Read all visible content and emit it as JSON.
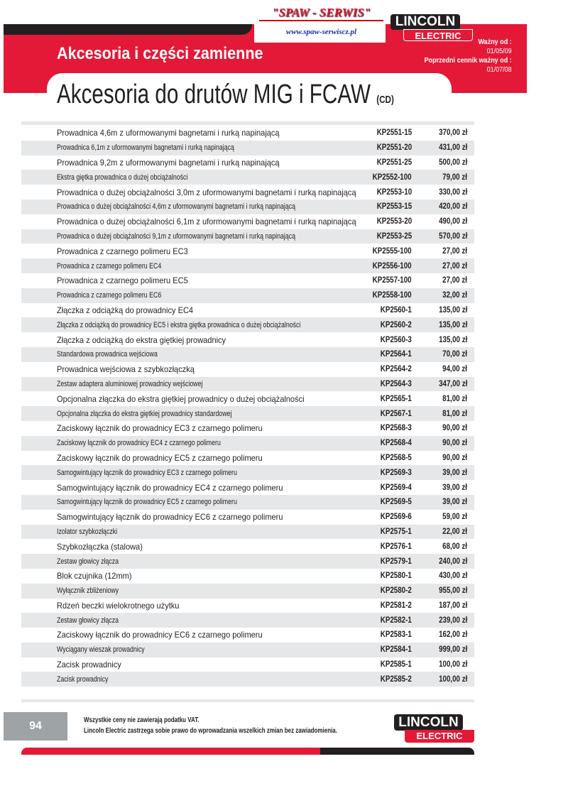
{
  "header": {
    "dealer_logo": "\"SPAW - SERWIS\"",
    "dealer_url": "www.spaw-serwiscz.pl",
    "brand_logo": {
      "line1": "LINCOLN",
      "line2": "ELECTRIC"
    },
    "section_title": "Akcesoria i części zamienne",
    "valid_from_label": "Ważny od :",
    "valid_from": "01/05/09",
    "previous_label": "Poprzedni cennik ważny od :",
    "previous_date": "01/07/08",
    "page_title": "Akcesoria do drutów MIG i FCAW",
    "page_title_suffix": "(CD)",
    "brand_color": "#e31937"
  },
  "items": [
    {
      "desc": "Prowadnica 4,6m z uformowanymi bagnetami i rurką napinającą",
      "code": "KP2551-15",
      "price": "370,00 zł"
    },
    {
      "desc": "Prowadnica 6,1m z uformowanymi bagnetami i rurką napinającą",
      "code": "KP2551-20",
      "price": "431,00 zł"
    },
    {
      "desc": "Prowadnica 9,2m z uformowanymi bagnetami i rurką napinającą",
      "code": "KP2551-25",
      "price": "500,00 zł"
    },
    {
      "desc": "Ekstra giętka prowadnica o dużej obciążalności",
      "code": "KP2552-100",
      "price": "79,00 zł"
    },
    {
      "desc": "Prowadnica o dużej obciążalności 3,0m z uformowanymi bagnetami i rurką napinającą",
      "code": "KP2553-10",
      "price": "330,00 zł"
    },
    {
      "desc": "Prowadnica o dużej obciążalności 4,6m z uformowanymi bagnetami i rurką napinającą",
      "code": "KP2553-15",
      "price": "420,00 zł"
    },
    {
      "desc": "Prowadnica o dużej obciążalności 6,1m z uformowanymi bagnetami i rurką napinającą",
      "code": "KP2553-20",
      "price": "490,00 zł"
    },
    {
      "desc": "Prowadnica o dużej obciążalności 9,1m z uformowanymi bagnetami i rurką napinającą",
      "code": "KP2553-25",
      "price": "570,00 zł"
    },
    {
      "desc": "Prowadnica z czarnego polimeru EC3",
      "code": "KP2555-100",
      "price": "27,00 zł"
    },
    {
      "desc": "Prowadnica z czarnego polimeru EC4",
      "code": "KP2556-100",
      "price": "27,00 zł"
    },
    {
      "desc": "Prowadnica z czarnego polimeru EC5",
      "code": "KP2557-100",
      "price": "27,00 zł"
    },
    {
      "desc": "Prowadnica z czarnego polimeru EC6",
      "code": "KP2558-100",
      "price": "32,00 zł"
    },
    {
      "desc": "Złączka z odciążką do prowadnicy EC4",
      "code": "KP2560-1",
      "price": "135,00 zł"
    },
    {
      "desc": "Złączka z odciążką do prowadnicy EC5 i ekstra giętka prowadnica o dużej obciążalności",
      "code": "KP2560-2",
      "price": "135,00 zł"
    },
    {
      "desc": "Złączka z odciążką do ekstra giętkiej prowadnicy",
      "code": "KP2560-3",
      "price": "135,00 zł"
    },
    {
      "desc": "Standardowa prowadnica wejściowa",
      "code": "KP2564-1",
      "price": "70,00 zł"
    },
    {
      "desc": "Prowadnica wejściowa z szybkozłączką",
      "code": "KP2564-2",
      "price": "94,00 zł"
    },
    {
      "desc": "Zestaw adaptera aluminiowej prowadnicy wejściowej",
      "code": "KP2564-3",
      "price": "347,00 zł"
    },
    {
      "desc": "Opcjonalna złączka do ekstra giętkiej prowadnicy o dużej obciążalności",
      "code": "KP2565-1",
      "price": "81,00 zł"
    },
    {
      "desc": "Opcjonalna złączka do ekstra giętkiej prowadnicy standardowej",
      "code": "KP2567-1",
      "price": "81,00 zł"
    },
    {
      "desc": "Zaciskowy łącznik do prowadnicy EC3 z czarnego polimeru",
      "code": "KP2568-3",
      "price": "90,00 zł"
    },
    {
      "desc": "Zaciskowy łącznik do prowadnicy EC4 z czarnego polimeru",
      "code": "KP2568-4",
      "price": "90,00 zł"
    },
    {
      "desc": "Zaciskowy łącznik do prowadnicy EC5 z czarnego polimeru",
      "code": "KP2568-5",
      "price": "90,00 zł"
    },
    {
      "desc": "Samogwintujący łącznik do prowadnicy EC3 z czarnego polimeru",
      "code": "KP2569-3",
      "price": "39,00 zł"
    },
    {
      "desc": "Samogwintujący łącznik do prowadnicy EC4 z czarnego polimeru",
      "code": "KP2569-4",
      "price": "39,00 zł"
    },
    {
      "desc": "Samogwintujący łącznik do prowadnicy EC5 z czarnego polimeru",
      "code": "KP2569-5",
      "price": "39,00 zł"
    },
    {
      "desc": "Samogwintujący łącznik do prowadnicy EC6 z czarnego polimeru",
      "code": "KP2569-6",
      "price": "59,00 zł"
    },
    {
      "desc": "Izolator szybkozłączki",
      "code": "KP2575-1",
      "price": "22,00 zł"
    },
    {
      "desc": "Szybkozłączka (stalowa)",
      "code": "KP2576-1",
      "price": "68,00 zł"
    },
    {
      "desc": "Zestaw głowicy złącza",
      "code": "KP2579-1",
      "price": "240,00 zł"
    },
    {
      "desc": "Blok czujnika (12mm)",
      "code": "KP2580-1",
      "price": "430,00 zł"
    },
    {
      "desc": "Wyłącznik zbliżeniowy",
      "code": "KP2580-2",
      "price": "955,00 zł"
    },
    {
      "desc": "Rdzeń beczki wielokrotnego użytku",
      "code": "KP2581-2",
      "price": "187,00 zł"
    },
    {
      "desc": "Zestaw głowicy złącza",
      "code": "KP2582-1",
      "price": "239,00 zł"
    },
    {
      "desc": "Zaciskowy łącznik do prowadnicy EC6 z czarnego polimeru",
      "code": "KP2583-1",
      "price": "162,00 zł"
    },
    {
      "desc": "Wyciągany wieszak prowadnicy",
      "code": "KP2584-1",
      "price": "999,00 zł"
    },
    {
      "desc": "Zacisk prowadnicy",
      "code": "KP2585-1",
      "price": "100,00 zł"
    },
    {
      "desc": "Zacisk prowadnicy",
      "code": "KP2585-2",
      "price": "100,00 zł"
    }
  ],
  "footer": {
    "page_number": "94",
    "note1": "Wszystkie ceny nie zawierają podatku VAT.",
    "note2": "Lincoln Electric zastrzega sobie prawo do wprowadzania wszelkich zmian bez zawiadomienia.",
    "brand_logo": {
      "line1": "LINCOLN",
      "line2": "ELECTRIC"
    }
  }
}
